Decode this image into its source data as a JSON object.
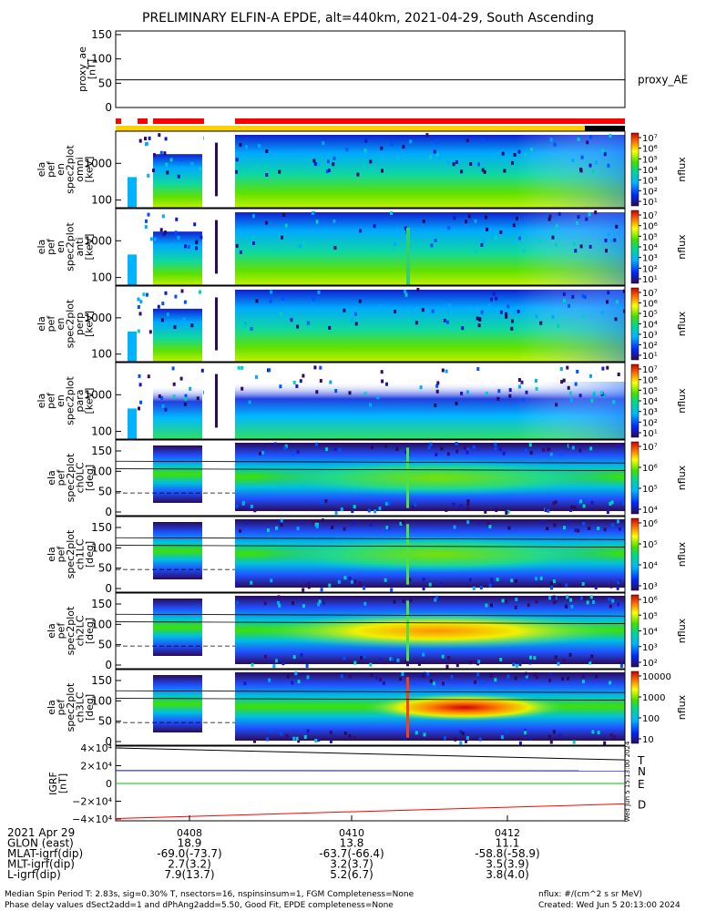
{
  "title": "PRELIMINARY ELFIN-A EPDE, alt=440km, 2021-04-29, South Ascending",
  "colorbar_label": "nflux",
  "chart_data": [
    {
      "type": "line",
      "id": "proxy_ae",
      "ylabel_lines": [
        "proxy_ae",
        "[nT]"
      ],
      "yticks": [
        "150",
        "100",
        "50",
        "0"
      ],
      "ylim": [
        0,
        150
      ],
      "series": [
        {
          "name": "proxy_AE",
          "values": [
            57,
            57
          ]
        }
      ]
    },
    {
      "type": "heatmap",
      "id": "spec-en-1",
      "ylabel_lines": [
        "ela",
        "pef",
        "en",
        "spec2plot",
        "omni",
        "[keV]"
      ],
      "yticks": [
        "1000",
        "100"
      ],
      "cbar_ticks": [
        "10⁷",
        "10⁶",
        "10⁵",
        "10⁴",
        "10³",
        "10²",
        "10¹"
      ]
    },
    {
      "type": "heatmap",
      "id": "spec-en-2",
      "ylabel_lines": [
        "ela",
        "pef",
        "en",
        "spec2plot",
        "anti",
        "[keV]"
      ],
      "yticks": [
        "1000",
        "100"
      ],
      "cbar_ticks": [
        "10⁷",
        "10⁶",
        "10⁵",
        "10⁴",
        "10³",
        "10²",
        "10¹"
      ]
    },
    {
      "type": "heatmap",
      "id": "spec-en-3",
      "ylabel_lines": [
        "ela",
        "pef",
        "en",
        "spec2plot",
        "perp",
        "[keV]"
      ],
      "yticks": [
        "1000",
        "100"
      ],
      "cbar_ticks": [
        "10⁷",
        "10⁶",
        "10⁵",
        "10⁴",
        "10³",
        "10²",
        "10¹"
      ]
    },
    {
      "type": "heatmap",
      "id": "spec-en-4",
      "ylabel_lines": [
        "ela",
        "pef",
        "en",
        "spec2plot",
        "para",
        "[keV]"
      ],
      "yticks": [
        "1000",
        "100"
      ],
      "cbar_ticks": [
        "10⁷",
        "10⁶",
        "10⁵",
        "10⁴",
        "10³",
        "10²",
        "10¹"
      ]
    },
    {
      "type": "heatmap",
      "id": "spec-pa-0",
      "ylabel_lines": [
        "ela",
        "pef",
        "spec2plot",
        "ch0LC",
        "[deg]"
      ],
      "yticks": [
        "150",
        "100",
        "50",
        "0"
      ],
      "cbar_ticks": [
        "10⁷",
        "10⁶",
        "10⁵",
        "10⁴"
      ]
    },
    {
      "type": "heatmap",
      "id": "spec-pa-1",
      "ylabel_lines": [
        "ela",
        "pef",
        "spec2plot",
        "ch1LC",
        "[deg]"
      ],
      "yticks": [
        "150",
        "100",
        "50",
        "0"
      ],
      "cbar_ticks": [
        "10⁶",
        "10⁵",
        "10⁴",
        "10³"
      ]
    },
    {
      "type": "heatmap",
      "id": "spec-pa-2",
      "ylabel_lines": [
        "ela",
        "pef",
        "spec2plot",
        "ch2LC",
        "[deg]"
      ],
      "yticks": [
        "150",
        "100",
        "50",
        "0"
      ],
      "cbar_ticks": [
        "10⁶",
        "10⁵",
        "10⁴",
        "10³",
        "10²"
      ]
    },
    {
      "type": "heatmap",
      "id": "spec-pa-3",
      "ylabel_lines": [
        "ela",
        "pef",
        "spec2plot",
        "ch3LC",
        "[deg]"
      ],
      "yticks": [
        "150",
        "100",
        "50",
        "0"
      ],
      "cbar_ticks": [
        "10000",
        "1000",
        "100",
        "10"
      ]
    },
    {
      "type": "line",
      "id": "igrf",
      "ylabel_lines": [
        "IGRF",
        "[nT]"
      ],
      "yticks": [
        "4×10⁴",
        "2×10⁴",
        "0",
        "−2×10⁴",
        "−4×10⁴"
      ],
      "ylim": [
        -40000,
        40000
      ],
      "series": [
        {
          "name": "T",
          "color": "#000000",
          "values": [
            40000,
            26500
          ]
        },
        {
          "name": "N",
          "color": "#0000ff",
          "values": [
            14500,
            14200
          ]
        },
        {
          "name": "E",
          "color": "#00c000",
          "values": [
            0,
            0
          ]
        },
        {
          "name": "D",
          "color": "#ff0000",
          "values": [
            -39500,
            -23000
          ]
        }
      ],
      "side_label": "Wed Jun 5 15:13:00 2024"
    }
  ],
  "time_axis": {
    "ticks": [
      "0408",
      "0410",
      "0412"
    ],
    "rows": [
      {
        "label": "2021 Apr 29",
        "values": [
          "",
          "",
          ""
        ]
      },
      {
        "label": "GLON (east)",
        "values": [
          "18.9",
          "13.8",
          "11.1"
        ]
      },
      {
        "label": "MLAT-igrf(dip)",
        "values": [
          "-69.0(-73.7)",
          "-63.7(-66.4)",
          "-58.8(-58.9)"
        ]
      },
      {
        "label": "MLT-igrf(dip)",
        "values": [
          "2.7(3.2)",
          "3.2(3.7)",
          "3.5(3.9)"
        ]
      },
      {
        "label": "L-igrf(dip)",
        "values": [
          "7.9(13.7)",
          "5.2(6.7)",
          "3.8(4.0)"
        ]
      }
    ]
  },
  "footer": {
    "line1": "Median Spin Period T: 2.83s, sig=0.30% T, nsectors=16, nspinsinsum=1, FGM Completeness=None",
    "line2": "Phase delay values dSect2add=1 and dPhAng2add=5.50, Good Fit, EPDE completeness=None",
    "units": "nflux: #/(cm^2 s sr MeV)",
    "created": "Created: Wed Jun  5 20:13:00 2024"
  }
}
